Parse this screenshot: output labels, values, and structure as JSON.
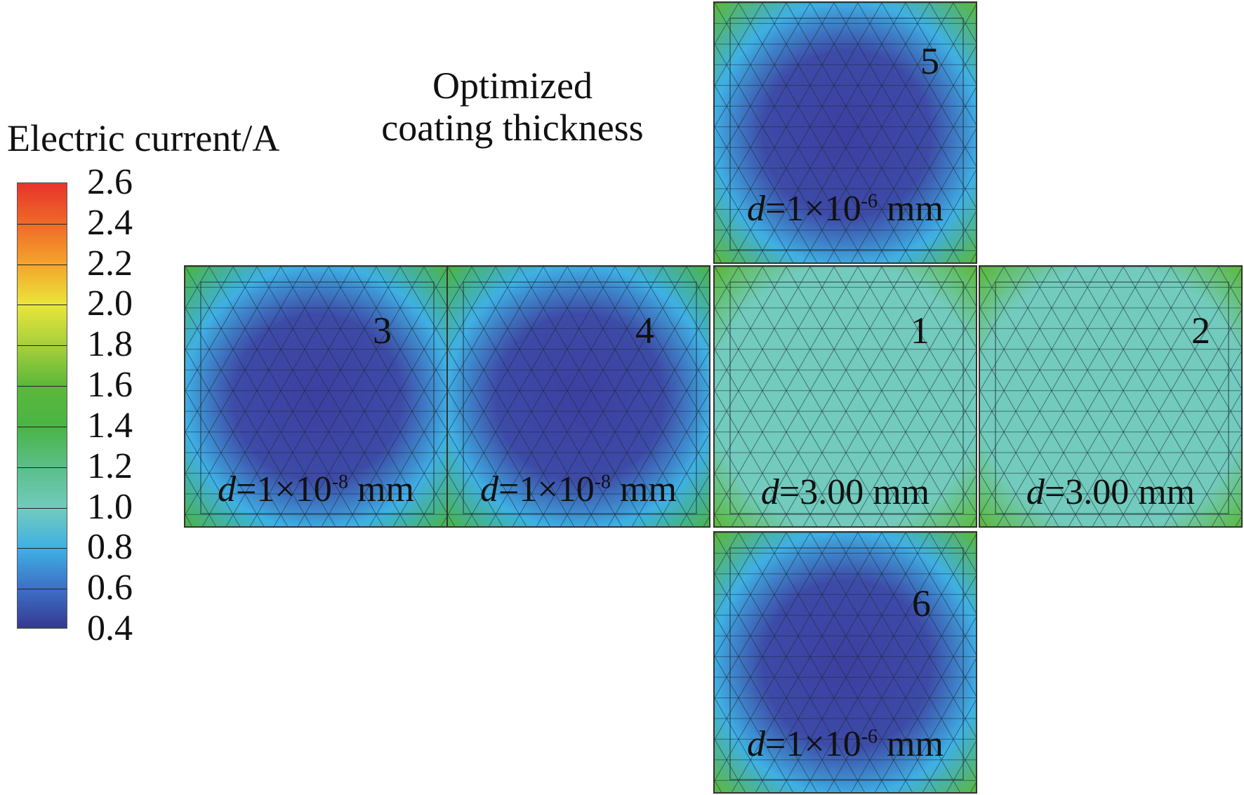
{
  "legend": {
    "title": "Electric current/A",
    "ticks": [
      "2.6",
      "2.4",
      "2.2",
      "2.0",
      "1.8",
      "1.6",
      "1.4",
      "1.2",
      "1.0",
      "0.8",
      "0.6",
      "0.4"
    ],
    "colors": [
      "#e8332b",
      "#ef6a28",
      "#f5a52c",
      "#e9e63a",
      "#a6cf3c",
      "#5bb83a",
      "#4ab446",
      "#5bbf8a",
      "#72cbbd",
      "#3fb0e4",
      "#3d6fc6",
      "#35378f"
    ]
  },
  "title": {
    "line1": "Optimized",
    "line2": "coating thickness"
  },
  "faces": [
    {
      "id": "5",
      "prefix": "d",
      "eq": "=1×10",
      "exp": "-6",
      "unit": " mm",
      "edge_color": "#5bb83a",
      "mid_color": "#3fb0e4",
      "core_color": "#3d3fa0"
    },
    {
      "id": "3",
      "prefix": "d",
      "eq": "=1×10",
      "exp": "-8",
      "unit": " mm",
      "edge_color": "#4ab446",
      "mid_color": "#3fb0e4",
      "core_color": "#3d3fa0"
    },
    {
      "id": "4",
      "prefix": "d",
      "eq": "=1×10",
      "exp": "-8",
      "unit": " mm",
      "edge_color": "#4ab446",
      "mid_color": "#3fb0e4",
      "core_color": "#3d3fa0"
    },
    {
      "id": "1",
      "prefix": "d",
      "eq": "=3.00 mm",
      "exp": "",
      "unit": "",
      "edge_color": "#5bb83a",
      "mid_color": "#72cbbd",
      "core_color": "#72cbbd"
    },
    {
      "id": "2",
      "prefix": "d",
      "eq": "=3.00 mm",
      "exp": "",
      "unit": "",
      "edge_color": "#5bb83a",
      "mid_color": "#72cbbd",
      "core_color": "#72cbbd"
    },
    {
      "id": "6",
      "prefix": "d",
      "eq": "=1×10",
      "exp": "-6",
      "unit": " mm",
      "edge_color": "#5bb83a",
      "mid_color": "#3fb0e4",
      "core_color": "#3d3fa0"
    }
  ]
}
